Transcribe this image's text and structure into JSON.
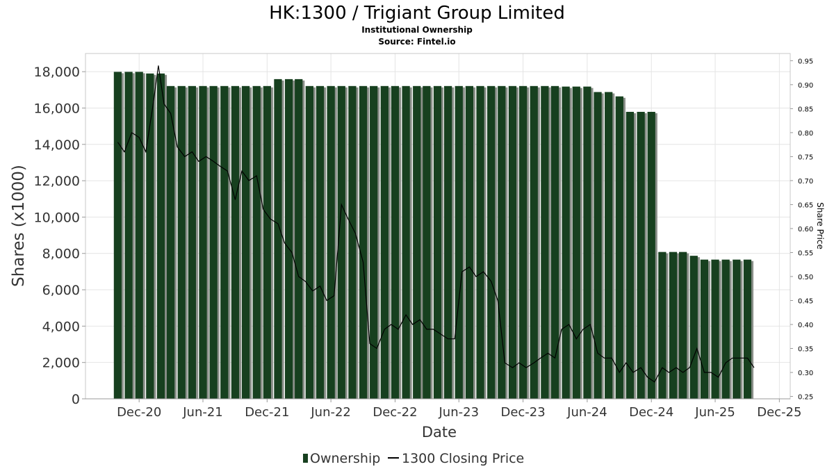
{
  "header": {
    "title": "HK:1300 / Trigiant Group Limited",
    "subtitle": "Institutional Ownership",
    "source": "Source: Fintel.io"
  },
  "legend": {
    "ownership_label": "Ownership",
    "price_label": "1300 Closing Price"
  },
  "colors": {
    "bar": "#17401f",
    "bar_shadow": "#8a8f89",
    "price_line": "#000000"
  },
  "chart_data": {
    "type": "bar",
    "xlabel": "Date",
    "ylabel": "Shares (x1000)",
    "y2label": "Share Price",
    "ylim": [
      0,
      19000
    ],
    "y2lim": [
      0.245,
      0.965
    ],
    "yticks": [
      0,
      2000,
      4000,
      6000,
      8000,
      10000,
      12000,
      14000,
      16000,
      18000
    ],
    "ytick_labels": [
      "0",
      "2,000",
      "4,000",
      "6,000",
      "8,000",
      "10,000",
      "12,000",
      "14,000",
      "16,000",
      "18,000"
    ],
    "y2ticks": [
      0.25,
      0.3,
      0.35,
      0.4,
      0.45,
      0.5,
      0.55,
      0.6,
      0.65,
      0.7,
      0.75,
      0.8,
      0.85,
      0.9,
      0.95
    ],
    "y2tick_labels": [
      "0.25",
      "0.30",
      "0.35",
      "0.40",
      "0.45",
      "0.50",
      "0.55",
      "0.60",
      "0.65",
      "0.70",
      "0.75",
      "0.80",
      "0.85",
      "0.90",
      "0.95"
    ],
    "xlim": [
      "2020-07-01",
      "2026-01-01"
    ],
    "xticks": [
      "2020-12-01",
      "2021-06-01",
      "2021-12-01",
      "2022-06-01",
      "2022-12-01",
      "2023-06-01",
      "2023-12-01",
      "2024-06-01",
      "2024-12-01",
      "2025-06-01",
      "2025-12-01"
    ],
    "xtick_labels": [
      "Dec-20",
      "Jun-21",
      "Dec-21",
      "Jun-22",
      "Dec-22",
      "Jun-23",
      "Dec-23",
      "Jun-24",
      "Dec-24",
      "Jun-25",
      "Dec-25"
    ],
    "grid": true,
    "legend_position": "bottom",
    "series": [
      {
        "name": "Ownership",
        "type": "bar",
        "x": [
          "2020-10-01",
          "2020-11-01",
          "2020-12-01",
          "2021-01-01",
          "2021-02-01",
          "2021-03-01",
          "2021-04-01",
          "2021-05-01",
          "2021-06-01",
          "2021-07-01",
          "2021-08-01",
          "2021-09-01",
          "2021-10-01",
          "2021-11-01",
          "2021-12-01",
          "2022-01-01",
          "2022-02-01",
          "2022-03-01",
          "2022-04-01",
          "2022-05-01",
          "2022-06-01",
          "2022-07-01",
          "2022-08-01",
          "2022-09-01",
          "2022-10-01",
          "2022-11-01",
          "2022-12-01",
          "2023-01-01",
          "2023-02-01",
          "2023-03-01",
          "2023-04-01",
          "2023-05-01",
          "2023-06-01",
          "2023-07-01",
          "2023-08-01",
          "2023-09-01",
          "2023-10-01",
          "2023-11-01",
          "2023-12-01",
          "2024-01-01",
          "2024-02-01",
          "2024-03-01",
          "2024-04-01",
          "2024-05-01",
          "2024-06-01",
          "2024-07-01",
          "2024-08-01",
          "2024-09-01",
          "2024-10-01",
          "2024-11-01",
          "2024-12-01",
          "2025-01-01",
          "2025-02-01",
          "2025-03-01",
          "2025-04-01",
          "2025-05-01",
          "2025-06-01",
          "2025-07-01",
          "2025-08-01",
          "2025-09-01"
        ],
        "values": [
          17990,
          17990,
          17990,
          17900,
          17900,
          17210,
          17210,
          17210,
          17210,
          17210,
          17210,
          17210,
          17210,
          17210,
          17210,
          17590,
          17590,
          17590,
          17210,
          17210,
          17210,
          17210,
          17210,
          17210,
          17210,
          17210,
          17210,
          17210,
          17210,
          17210,
          17210,
          17210,
          17210,
          17210,
          17210,
          17210,
          17210,
          17210,
          17210,
          17210,
          17210,
          17210,
          17180,
          17180,
          17180,
          16880,
          16880,
          16640,
          15790,
          15790,
          15790,
          8080,
          8080,
          8080,
          7870,
          7660,
          7660,
          7660,
          7660,
          7660
        ]
      },
      {
        "name": "1300 Closing Price",
        "type": "line",
        "axis": "right",
        "x": [
          "2020-10-01",
          "2020-10-20",
          "2020-11-10",
          "2020-12-01",
          "2020-12-20",
          "2021-01-10",
          "2021-01-25",
          "2021-02-10",
          "2021-03-01",
          "2021-03-20",
          "2021-04-10",
          "2021-05-01",
          "2021-05-20",
          "2021-06-10",
          "2021-07-01",
          "2021-07-20",
          "2021-08-10",
          "2021-09-01",
          "2021-09-20",
          "2021-10-10",
          "2021-11-01",
          "2021-11-20",
          "2021-12-10",
          "2022-01-01",
          "2022-01-20",
          "2022-02-10",
          "2022-03-01",
          "2022-03-20",
          "2022-04-10",
          "2022-05-01",
          "2022-05-20",
          "2022-06-10",
          "2022-07-01",
          "2022-07-20",
          "2022-08-10",
          "2022-09-01",
          "2022-09-20",
          "2022-10-10",
          "2022-11-01",
          "2022-11-20",
          "2022-12-10",
          "2023-01-01",
          "2023-01-20",
          "2023-02-10",
          "2023-03-01",
          "2023-03-20",
          "2023-04-10",
          "2023-05-01",
          "2023-05-20",
          "2023-06-10",
          "2023-07-01",
          "2023-07-20",
          "2023-08-10",
          "2023-09-01",
          "2023-09-20",
          "2023-10-10",
          "2023-11-01",
          "2023-11-20",
          "2023-12-10",
          "2024-01-01",
          "2024-01-20",
          "2024-02-10",
          "2024-03-01",
          "2024-03-20",
          "2024-04-10",
          "2024-05-01",
          "2024-05-20",
          "2024-06-10",
          "2024-07-01",
          "2024-07-20",
          "2024-08-10",
          "2024-09-01",
          "2024-09-20",
          "2024-10-10",
          "2024-11-01",
          "2024-11-20",
          "2024-12-10",
          "2025-01-01",
          "2025-01-20",
          "2025-02-10",
          "2025-03-01",
          "2025-03-20",
          "2025-04-10",
          "2025-05-01",
          "2025-05-20",
          "2025-06-10",
          "2025-07-01",
          "2025-07-20",
          "2025-08-10",
          "2025-09-01",
          "2025-09-20"
        ],
        "values": [
          0.78,
          0.76,
          0.8,
          0.79,
          0.76,
          0.86,
          0.94,
          0.86,
          0.84,
          0.77,
          0.75,
          0.76,
          0.74,
          0.75,
          0.74,
          0.73,
          0.72,
          0.66,
          0.72,
          0.7,
          0.71,
          0.64,
          0.62,
          0.61,
          0.57,
          0.55,
          0.5,
          0.49,
          0.47,
          0.48,
          0.45,
          0.46,
          0.65,
          0.62,
          0.59,
          0.53,
          0.36,
          0.35,
          0.39,
          0.4,
          0.39,
          0.42,
          0.4,
          0.41,
          0.39,
          0.39,
          0.38,
          0.37,
          0.37,
          0.51,
          0.52,
          0.5,
          0.51,
          0.49,
          0.45,
          0.32,
          0.31,
          0.32,
          0.31,
          0.32,
          0.33,
          0.34,
          0.33,
          0.39,
          0.4,
          0.37,
          0.39,
          0.4,
          0.34,
          0.33,
          0.33,
          0.3,
          0.32,
          0.3,
          0.31,
          0.29,
          0.28,
          0.31,
          0.3,
          0.31,
          0.3,
          0.31,
          0.35,
          0.3,
          0.3,
          0.29,
          0.32,
          0.33,
          0.33,
          0.33,
          0.31
        ]
      }
    ]
  }
}
